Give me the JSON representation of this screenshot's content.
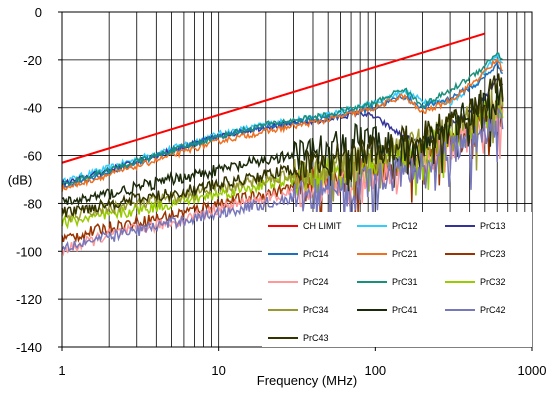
{
  "chart_data": {
    "type": "line",
    "title": "",
    "xlabel": "Frequency (MHz)",
    "ylabel": "(dB)",
    "x_scale": "log",
    "xlim": [
      1,
      1000
    ],
    "ylim": [
      -140,
      0
    ],
    "x_ticks": [
      1,
      10,
      100,
      1000
    ],
    "x_tick_labels": [
      "1",
      "10",
      "100",
      "1000"
    ],
    "y_ticks": [
      0,
      -20,
      -40,
      -60,
      -80,
      -100,
      -120,
      -140
    ],
    "y_tick_labels": [
      "0",
      "-20",
      "-40",
      "-60",
      "-80",
      "-100",
      "-120",
      "-140"
    ],
    "grid": true,
    "legend_position": "bottom-right",
    "series": [
      {
        "name": "CH LIMIT",
        "color": "#ff0000",
        "x": [
          1,
          500
        ],
        "y": [
          -63,
          -9
        ]
      },
      {
        "name": "PrC12",
        "color": "#33ccff",
        "x": [
          1,
          2,
          5,
          10,
          20,
          50,
          100,
          150,
          200,
          300,
          450,
          600,
          650
        ],
        "y": [
          -71,
          -65,
          -57,
          -51,
          -47,
          -43,
          -38,
          -33,
          -37,
          -38,
          -29,
          -18,
          -22
        ]
      },
      {
        "name": "PrC13",
        "color": "#333399",
        "x": [
          1,
          2,
          5,
          10,
          20,
          50,
          80,
          100,
          150,
          200,
          300,
          450,
          600,
          650
        ],
        "y": [
          -72,
          -66,
          -58,
          -52,
          -48,
          -45,
          -42,
          -44,
          -52,
          -55,
          -47,
          -40,
          -28,
          -31
        ]
      },
      {
        "name": "PrC14",
        "color": "#1f6fc0",
        "x": [
          1,
          2,
          5,
          10,
          20,
          50,
          100,
          150,
          200,
          300,
          450,
          600,
          650
        ],
        "y": [
          -73,
          -67,
          -58,
          -52,
          -48,
          -44,
          -40,
          -35,
          -40,
          -36,
          -30,
          -22,
          -25
        ]
      },
      {
        "name": "PrC21",
        "color": "#f07020",
        "x": [
          1,
          2,
          5,
          10,
          20,
          50,
          100,
          150,
          200,
          300,
          450,
          600,
          650
        ],
        "y": [
          -74,
          -68,
          -60,
          -54,
          -50,
          -45,
          -40,
          -35,
          -42,
          -37,
          -28,
          -20,
          -24
        ]
      },
      {
        "name": "PrC23",
        "color": "#993300",
        "x": [
          1,
          2,
          5,
          10,
          20,
          50,
          100,
          200,
          400,
          650
        ],
        "y": [
          -95,
          -90,
          -85,
          -80,
          -76,
          -70,
          -66,
          -60,
          -50,
          -40
        ]
      },
      {
        "name": "PrC24",
        "color": "#ff9999",
        "x": [
          1,
          2,
          5,
          10,
          20,
          50,
          100,
          200,
          400,
          650
        ],
        "y": [
          -100,
          -93,
          -88,
          -82,
          -78,
          -72,
          -68,
          -62,
          -52,
          -42
        ]
      },
      {
        "name": "PrC31",
        "color": "#1a8f7a",
        "x": [
          1,
          2,
          5,
          10,
          20,
          50,
          100,
          150,
          200,
          300,
          450,
          600,
          650
        ],
        "y": [
          -72,
          -66,
          -58,
          -52,
          -47,
          -43,
          -38,
          -32,
          -39,
          -33,
          -25,
          -17,
          -20
        ]
      },
      {
        "name": "PrC32",
        "color": "#99cc00",
        "x": [
          1,
          2,
          5,
          10,
          20,
          50,
          100,
          200,
          400,
          650
        ],
        "y": [
          -88,
          -85,
          -80,
          -76,
          -72,
          -68,
          -64,
          -58,
          -48,
          -38
        ]
      },
      {
        "name": "PrC34",
        "color": "#999933",
        "x": [
          1,
          2,
          5,
          10,
          20,
          50,
          100,
          200,
          400,
          650
        ],
        "y": [
          -86,
          -82,
          -78,
          -74,
          -70,
          -65,
          -60,
          -55,
          -45,
          -35
        ]
      },
      {
        "name": "PrC41",
        "color": "#1a2a0a",
        "x": [
          1,
          2,
          5,
          10,
          20,
          50,
          80,
          100,
          150,
          200,
          400,
          650
        ],
        "y": [
          -80,
          -76,
          -70,
          -66,
          -62,
          -58,
          -52,
          -55,
          -58,
          -55,
          -42,
          -32
        ]
      },
      {
        "name": "PrC42",
        "color": "#7777bb",
        "x": [
          1,
          2,
          5,
          10,
          20,
          50,
          100,
          200,
          400,
          650
        ],
        "y": [
          -98,
          -94,
          -88,
          -84,
          -80,
          -75,
          -70,
          -64,
          -54,
          -44
        ]
      },
      {
        "name": "PrC43",
        "color": "#333300",
        "x": [
          1,
          2,
          5,
          10,
          20,
          50,
          100,
          200,
          400,
          650
        ],
        "y": [
          -84,
          -80,
          -76,
          -72,
          -68,
          -63,
          -58,
          -52,
          -42,
          -30
        ]
      }
    ]
  }
}
